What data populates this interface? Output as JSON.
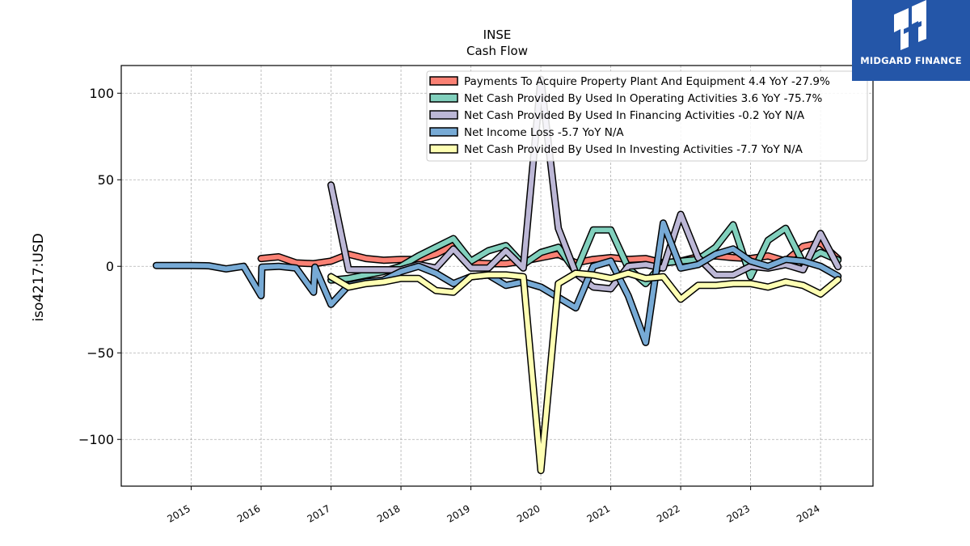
{
  "chart_data": {
    "type": "line",
    "title": "INSE",
    "subtitle": "Cash Flow",
    "ylabel": "iso4217:USD",
    "xlabel": "",
    "xlim": [
      2014.0,
      2024.75
    ],
    "ylim": [
      -127,
      116
    ],
    "y_ticks": [
      100,
      50,
      0,
      -50,
      -100
    ],
    "y_tick_labels": [
      "100",
      "50",
      "0",
      "−50",
      "−100"
    ],
    "x_ticks": [
      2015,
      2016,
      2017,
      2018,
      2019,
      2020,
      2021,
      2022,
      2023,
      2024
    ],
    "x_tick_labels": [
      "2015",
      "2016",
      "2017",
      "2018",
      "2019",
      "2020",
      "2021",
      "2022",
      "2023",
      "2024"
    ],
    "grid": true,
    "legend_position": "top-right",
    "series": [
      {
        "name": "Payments To Acquire Property Plant And Equipment",
        "legend_label": "Payments To Acquire Property Plant And Equipment  4.4 YoY -27.9%",
        "color": "#fa8174",
        "points": [
          [
            2016.0,
            4.5
          ],
          [
            2016.25,
            5.5
          ],
          [
            2016.5,
            2
          ],
          [
            2016.75,
            1.5
          ],
          [
            2017.0,
            3
          ],
          [
            2017.25,
            7
          ],
          [
            2017.5,
            4.5
          ],
          [
            2017.75,
            3.5
          ],
          [
            2018.0,
            4
          ],
          [
            2018.25,
            4
          ],
          [
            2018.5,
            7
          ],
          [
            2018.75,
            12
          ],
          [
            2019.0,
            2
          ],
          [
            2019.25,
            1.5
          ],
          [
            2019.5,
            1.5
          ],
          [
            2019.75,
            3
          ],
          [
            2020.0,
            5
          ],
          [
            2020.25,
            7
          ],
          [
            2020.5,
            2
          ],
          [
            2020.75,
            4
          ],
          [
            2021.0,
            5
          ],
          [
            2021.25,
            4
          ],
          [
            2021.5,
            4.5
          ],
          [
            2021.75,
            2
          ],
          [
            2022.0,
            3
          ],
          [
            2022.25,
            5.5
          ],
          [
            2022.5,
            6
          ],
          [
            2022.75,
            5
          ],
          [
            2023.0,
            4.5
          ],
          [
            2023.25,
            6
          ],
          [
            2023.5,
            3
          ],
          [
            2023.75,
            11.5
          ],
          [
            2024.0,
            13.5
          ],
          [
            2024.25,
            4.4
          ]
        ]
      },
      {
        "name": "Net Cash Provided By Used In Operating Activities",
        "legend_label": "Net Cash Provided By Used In Operating Activities  3.6 YoY -75.7%",
        "color": "#81d0bd",
        "points": [
          [
            2017.0,
            -8
          ],
          [
            2017.25,
            -7
          ],
          [
            2017.5,
            -5
          ],
          [
            2017.75,
            -3
          ],
          [
            2018.0,
            0
          ],
          [
            2018.25,
            6
          ],
          [
            2018.5,
            11
          ],
          [
            2018.75,
            16
          ],
          [
            2019.0,
            3
          ],
          [
            2019.25,
            9
          ],
          [
            2019.5,
            12
          ],
          [
            2019.75,
            1
          ],
          [
            2020.0,
            8
          ],
          [
            2020.25,
            11
          ],
          [
            2020.5,
            -3
          ],
          [
            2020.75,
            21
          ],
          [
            2021.0,
            21
          ],
          [
            2021.25,
            -1
          ],
          [
            2021.5,
            -10
          ],
          [
            2021.75,
            2
          ],
          [
            2022.0,
            3
          ],
          [
            2022.25,
            4
          ],
          [
            2022.5,
            11
          ],
          [
            2022.75,
            24
          ],
          [
            2023.0,
            -6
          ],
          [
            2023.25,
            15
          ],
          [
            2023.5,
            22
          ],
          [
            2023.75,
            2
          ],
          [
            2024.0,
            8
          ],
          [
            2024.25,
            3.6
          ]
        ]
      },
      {
        "name": "Net Cash Provided By Used In Financing Activities",
        "legend_label": "Net Cash Provided By Used In Financing Activities  -0.2 YoY N/A",
        "color": "#bcb7d6",
        "points": [
          [
            2017.0,
            47
          ],
          [
            2017.25,
            -2
          ],
          [
            2017.5,
            -2
          ],
          [
            2017.75,
            -2
          ],
          [
            2018.0,
            -2
          ],
          [
            2018.25,
            1
          ],
          [
            2018.5,
            -1
          ],
          [
            2018.75,
            10
          ],
          [
            2019.0,
            -1
          ],
          [
            2019.25,
            -1
          ],
          [
            2019.5,
            9
          ],
          [
            2019.75,
            -1
          ],
          [
            2020.0,
            108
          ],
          [
            2020.25,
            22
          ],
          [
            2020.5,
            -4
          ],
          [
            2020.75,
            -12
          ],
          [
            2021.0,
            -13
          ],
          [
            2021.25,
            0
          ],
          [
            2021.5,
            1
          ],
          [
            2021.75,
            -1
          ],
          [
            2022.0,
            30
          ],
          [
            2022.25,
            5
          ],
          [
            2022.5,
            -5
          ],
          [
            2022.75,
            -5
          ],
          [
            2023.0,
            0
          ],
          [
            2023.25,
            -1
          ],
          [
            2023.5,
            1
          ],
          [
            2023.75,
            -2
          ],
          [
            2024.0,
            19
          ],
          [
            2024.25,
            -0.2
          ]
        ]
      },
      {
        "name": "Net Income Loss",
        "legend_label": "Net Income Loss  -5.7 YoY N/A",
        "color": "#77aad5",
        "points": [
          [
            2014.5,
            0.5
          ],
          [
            2014.75,
            0.5
          ],
          [
            2015.0,
            0.5
          ],
          [
            2015.25,
            0.3
          ],
          [
            2015.5,
            -1.5
          ],
          [
            2015.75,
            0
          ],
          [
            2016.0,
            -17
          ],
          [
            2016.01,
            -0.5
          ],
          [
            2016.25,
            0
          ],
          [
            2016.5,
            -1
          ],
          [
            2016.75,
            -15
          ],
          [
            2016.77,
            -0.5
          ],
          [
            2017.0,
            -22
          ],
          [
            2017.25,
            -11
          ],
          [
            2017.5,
            -9
          ],
          [
            2017.75,
            -8
          ],
          [
            2018.0,
            -3
          ],
          [
            2018.25,
            0
          ],
          [
            2018.5,
            -4
          ],
          [
            2018.75,
            -10
          ],
          [
            2019.0,
            -6
          ],
          [
            2019.25,
            -5
          ],
          [
            2019.5,
            -11
          ],
          [
            2019.75,
            -9
          ],
          [
            2020.0,
            -12
          ],
          [
            2020.25,
            -18
          ],
          [
            2020.5,
            -24
          ],
          [
            2020.75,
            0
          ],
          [
            2021.0,
            3
          ],
          [
            2021.25,
            -17
          ],
          [
            2021.5,
            -44
          ],
          [
            2021.75,
            25
          ],
          [
            2022.0,
            -1
          ],
          [
            2022.25,
            1
          ],
          [
            2022.5,
            7
          ],
          [
            2022.75,
            10
          ],
          [
            2023.0,
            3
          ],
          [
            2023.25,
            0
          ],
          [
            2023.5,
            4
          ],
          [
            2023.75,
            3
          ],
          [
            2024.0,
            0
          ],
          [
            2024.25,
            -5.7
          ]
        ]
      },
      {
        "name": "Net Cash Provided By Used In Investing Activities",
        "legend_label": "Net Cash Provided By Used In Investing Activities  -7.7 YoY N/A",
        "color": "#feffb3",
        "points": [
          [
            2017.0,
            -6
          ],
          [
            2017.25,
            -12
          ],
          [
            2017.5,
            -10
          ],
          [
            2017.75,
            -9
          ],
          [
            2018.0,
            -7
          ],
          [
            2018.25,
            -7
          ],
          [
            2018.5,
            -14
          ],
          [
            2018.75,
            -15
          ],
          [
            2019.0,
            -6
          ],
          [
            2019.25,
            -5
          ],
          [
            2019.5,
            -5
          ],
          [
            2019.75,
            -6
          ],
          [
            2020.0,
            -118
          ],
          [
            2020.25,
            -10
          ],
          [
            2020.5,
            -4
          ],
          [
            2020.75,
            -5
          ],
          [
            2021.0,
            -7
          ],
          [
            2021.25,
            -4
          ],
          [
            2021.5,
            -7
          ],
          [
            2021.75,
            -6
          ],
          [
            2022.0,
            -19
          ],
          [
            2022.25,
            -11
          ],
          [
            2022.5,
            -11
          ],
          [
            2022.75,
            -10
          ],
          [
            2023.0,
            -10
          ],
          [
            2023.25,
            -12
          ],
          [
            2023.5,
            -9
          ],
          [
            2023.75,
            -11
          ],
          [
            2024.0,
            -16
          ],
          [
            2024.25,
            -7.7
          ]
        ]
      }
    ]
  },
  "logo": {
    "text": "MIDGARD FINANCE",
    "color": "#2456a8"
  }
}
